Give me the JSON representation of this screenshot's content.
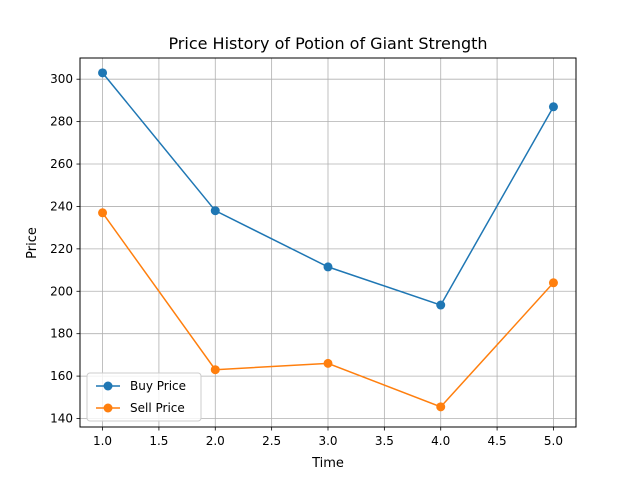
{
  "chart_data": {
    "type": "line",
    "title": "Price History of Potion of Giant Strength",
    "xlabel": "Time",
    "ylabel": "Price",
    "xlim": [
      0.8,
      5.2
    ],
    "ylim": [
      136,
      310
    ],
    "xticks": [
      1.0,
      1.5,
      2.0,
      2.5,
      3.0,
      3.5,
      4.0,
      4.5,
      5.0
    ],
    "xtick_labels": [
      "1.0",
      "1.5",
      "2.0",
      "2.5",
      "3.0",
      "3.5",
      "4.0",
      "4.5",
      "5.0"
    ],
    "yticks": [
      140,
      160,
      180,
      200,
      220,
      240,
      260,
      280,
      300
    ],
    "ytick_labels": [
      "140",
      "160",
      "180",
      "200",
      "220",
      "240",
      "260",
      "280",
      "300"
    ],
    "grid": true,
    "legend_position": "lower-left",
    "x": [
      1,
      2,
      3,
      4,
      5
    ],
    "series": [
      {
        "name": "Buy Price",
        "color": "#1f77b4",
        "values": [
          303,
          238,
          211.5,
          193.5,
          287
        ]
      },
      {
        "name": "Sell Price",
        "color": "#ff7f0e",
        "values": [
          237,
          163,
          166,
          145.5,
          204
        ]
      }
    ]
  }
}
